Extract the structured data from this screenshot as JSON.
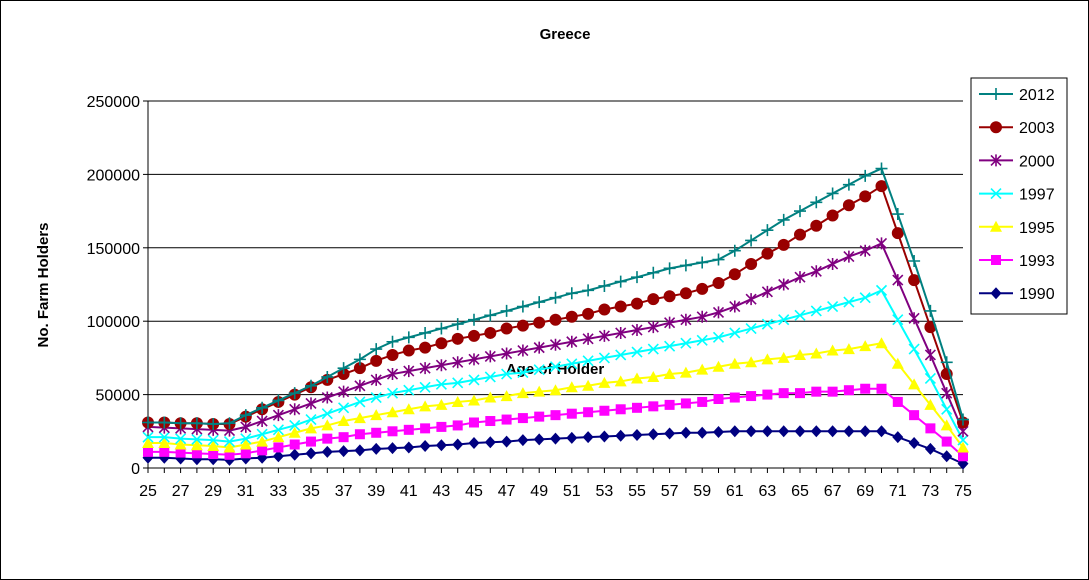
{
  "chart_data": {
    "type": "line",
    "title": "Greece",
    "xlabel": "Age of Holder",
    "ylabel": "No. Farm Holders",
    "ylim": [
      0,
      250000
    ],
    "yticks": [
      0,
      50000,
      100000,
      150000,
      200000,
      250000
    ],
    "grid": true,
    "legend_placement": "right",
    "x": [
      25,
      26,
      27,
      28,
      29,
      30,
      31,
      32,
      33,
      34,
      35,
      36,
      37,
      38,
      39,
      40,
      41,
      42,
      43,
      44,
      45,
      46,
      47,
      48,
      49,
      50,
      51,
      52,
      53,
      54,
      55,
      56,
      57,
      58,
      59,
      60,
      61,
      62,
      63,
      64,
      65,
      66,
      67,
      68,
      69,
      70,
      71,
      72,
      73,
      74,
      75
    ],
    "xticks": [
      25,
      27,
      29,
      31,
      33,
      35,
      37,
      39,
      41,
      43,
      45,
      47,
      49,
      51,
      53,
      55,
      57,
      59,
      61,
      63,
      65,
      67,
      69,
      71,
      73,
      75
    ],
    "series": [
      {
        "name": "2012",
        "color": "#008080",
        "marker": "plus",
        "values": [
          31000,
          31000,
          30500,
          30500,
          30000,
          30500,
          36000,
          41000,
          46000,
          51000,
          56000,
          62000,
          68000,
          74000,
          81000,
          86000,
          89000,
          92000,
          95000,
          98000,
          101000,
          104000,
          107000,
          110000,
          113000,
          116000,
          119000,
          121000,
          124000,
          127000,
          130000,
          133000,
          136000,
          138000,
          140000,
          142000,
          148000,
          155000,
          162000,
          169000,
          175000,
          181000,
          187000,
          193000,
          199000,
          204000,
          173000,
          141000,
          107000,
          72000,
          33000
        ]
      },
      {
        "name": "2003",
        "color": "#990000",
        "marker": "circle",
        "values": [
          31000,
          31000,
          30500,
          30500,
          30000,
          30000,
          35000,
          40000,
          45000,
          50000,
          55000,
          60000,
          64000,
          68000,
          73000,
          77000,
          80000,
          82000,
          85000,
          88000,
          90000,
          92000,
          95000,
          97000,
          99000,
          101000,
          103000,
          105000,
          108000,
          110000,
          112000,
          115000,
          117000,
          119000,
          122000,
          126000,
          132000,
          139000,
          146000,
          152000,
          159000,
          165000,
          172000,
          179000,
          185000,
          192000,
          160000,
          128000,
          96000,
          64000,
          31000
        ]
      },
      {
        "name": "2000",
        "color": "#800080",
        "marker": "star",
        "values": [
          28000,
          27500,
          27000,
          26500,
          26000,
          25500,
          28000,
          32000,
          36000,
          40000,
          44000,
          48000,
          52000,
          56000,
          60000,
          64000,
          66000,
          68000,
          70000,
          72000,
          74000,
          76000,
          78000,
          80000,
          82000,
          84000,
          86000,
          88000,
          90000,
          92000,
          94000,
          96000,
          99000,
          101000,
          103000,
          106000,
          110000,
          115000,
          120000,
          125000,
          130000,
          134000,
          139000,
          144000,
          148000,
          153000,
          128000,
          102000,
          77000,
          51000,
          25000
        ]
      },
      {
        "name": "1997",
        "color": "#00FFFF",
        "marker": "x",
        "values": [
          21000,
          21000,
          20000,
          19500,
          19000,
          18000,
          20000,
          23000,
          26000,
          29000,
          33000,
          37000,
          41000,
          45000,
          48000,
          51000,
          53000,
          55000,
          57000,
          58000,
          60000,
          62000,
          64000,
          65000,
          67000,
          69000,
          71000,
          73000,
          75000,
          77000,
          79000,
          81000,
          83000,
          85000,
          87000,
          89000,
          92000,
          95000,
          98000,
          101000,
          104000,
          107000,
          110000,
          113000,
          116000,
          121000,
          101000,
          81000,
          61000,
          40000,
          19000
        ]
      },
      {
        "name": "1995",
        "color": "#FFFF00",
        "marker": "triangle",
        "values": [
          17000,
          17000,
          16000,
          15500,
          15000,
          14000,
          16000,
          18000,
          21000,
          24000,
          27000,
          29000,
          32000,
          34000,
          36000,
          38000,
          40000,
          42000,
          43000,
          45000,
          46000,
          48000,
          49000,
          51000,
          52000,
          53000,
          55000,
          56000,
          58000,
          59000,
          61000,
          62000,
          64000,
          65000,
          67000,
          69000,
          71000,
          72000,
          74000,
          75000,
          77000,
          78000,
          80000,
          81000,
          83000,
          85000,
          71000,
          57000,
          43000,
          29000,
          14000
        ]
      },
      {
        "name": "1993",
        "color": "#FF00FF",
        "marker": "square",
        "values": [
          11000,
          11000,
          10500,
          10000,
          9500,
          9000,
          10000,
          12000,
          14000,
          16000,
          18000,
          20000,
          21000,
          23000,
          24000,
          25000,
          26000,
          27000,
          28000,
          29000,
          31000,
          32000,
          33000,
          34000,
          35000,
          36000,
          37000,
          38000,
          39000,
          40000,
          41000,
          42000,
          43000,
          44000,
          45000,
          47000,
          48000,
          49000,
          50000,
          51000,
          51000,
          52000,
          52000,
          53000,
          54000,
          54000,
          45000,
          36000,
          27000,
          18000,
          8000
        ]
      },
      {
        "name": "1990",
        "color": "#000080",
        "marker": "diamond",
        "values": [
          7000,
          7000,
          6500,
          6000,
          6000,
          5500,
          6500,
          7000,
          8000,
          9000,
          10000,
          11000,
          11500,
          12000,
          13000,
          13500,
          14000,
          15000,
          15500,
          16000,
          17000,
          17500,
          18000,
          19000,
          19500,
          20000,
          20500,
          21000,
          21500,
          22000,
          22500,
          23000,
          23500,
          24000,
          24000,
          24500,
          25000,
          25000,
          25000,
          25000,
          25000,
          25000,
          25000,
          25000,
          25000,
          25000,
          21000,
          17000,
          13000,
          8000,
          3000
        ]
      }
    ]
  }
}
